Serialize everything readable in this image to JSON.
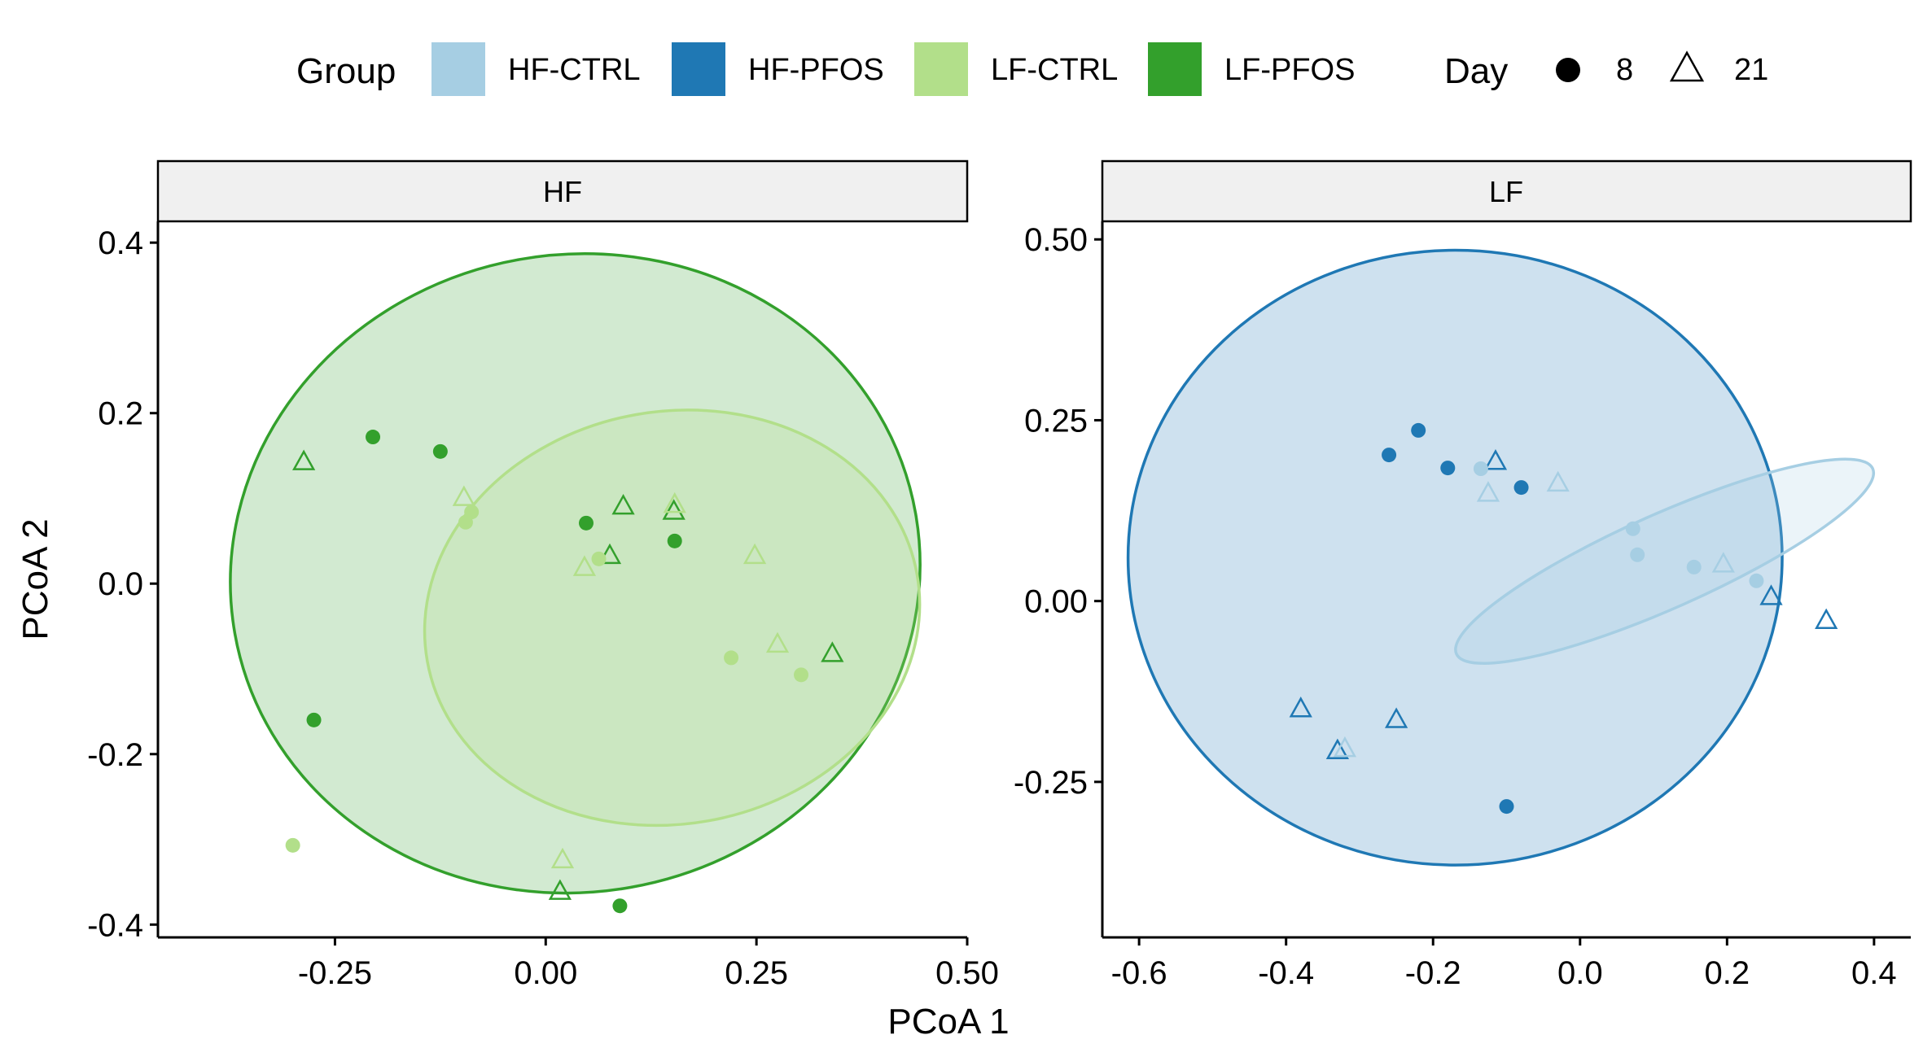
{
  "chart_data": {
    "type": "scatter",
    "xlabel": "PCoA 1",
    "ylabel": "PCoA 2",
    "legend": {
      "placement": "top",
      "group_title": "Group",
      "groups": [
        {
          "name": "HF-CTRL",
          "color": "#a6cee3"
        },
        {
          "name": "HF-PFOS",
          "color": "#1f78b4"
        },
        {
          "name": "LF-CTRL",
          "color": "#b2df8a"
        },
        {
          "name": "LF-PFOS",
          "color": "#33a02c"
        }
      ],
      "day_title": "Day",
      "days": [
        {
          "label": "8",
          "shape": "circle"
        },
        {
          "label": "21",
          "shape": "triangle"
        }
      ]
    },
    "panels": [
      {
        "strip": "HF",
        "xlim": [
          -0.46,
          0.5
        ],
        "ylim": [
          -0.415,
          0.425
        ],
        "xticks": [
          -0.25,
          0.0,
          0.25,
          0.5
        ],
        "xtick_labels": [
          "-0.25",
          "0.00",
          "0.25",
          "0.50"
        ],
        "yticks": [
          -0.4,
          -0.2,
          0.0,
          0.2,
          0.4
        ],
        "ytick_labels": [
          "-0.4",
          "-0.2",
          "0.0",
          "0.2",
          "0.4"
        ],
        "grid": false,
        "ellipses": [
          {
            "group": "LF-PFOS",
            "cx": 0.035,
            "cy": 0.012,
            "rx": 0.41,
            "ry": 0.374,
            "angle": -10
          },
          {
            "group": "LF-CTRL",
            "cx": 0.15,
            "cy": -0.04,
            "rx": 0.295,
            "ry": 0.242,
            "angle": -10
          }
        ],
        "points": [
          {
            "group": "LF-PFOS",
            "day": "8",
            "x": -0.205,
            "y": 0.172
          },
          {
            "group": "LF-PFOS",
            "day": "8",
            "x": -0.125,
            "y": 0.155
          },
          {
            "group": "LF-PFOS",
            "day": "8",
            "x": 0.048,
            "y": 0.071
          },
          {
            "group": "LF-PFOS",
            "day": "8",
            "x": 0.153,
            "y": 0.05
          },
          {
            "group": "LF-PFOS",
            "day": "8",
            "x": -0.275,
            "y": -0.16
          },
          {
            "group": "LF-PFOS",
            "day": "8",
            "x": 0.088,
            "y": -0.378
          },
          {
            "group": "LF-PFOS",
            "day": "21",
            "x": -0.287,
            "y": 0.142
          },
          {
            "group": "LF-PFOS",
            "day": "21",
            "x": 0.092,
            "y": 0.09
          },
          {
            "group": "LF-PFOS",
            "day": "21",
            "x": 0.152,
            "y": 0.084
          },
          {
            "group": "LF-PFOS",
            "day": "21",
            "x": 0.076,
            "y": 0.032
          },
          {
            "group": "LF-PFOS",
            "day": "21",
            "x": 0.34,
            "y": -0.083
          },
          {
            "group": "LF-PFOS",
            "day": "21",
            "x": 0.017,
            "y": -0.362
          },
          {
            "group": "LF-CTRL",
            "day": "8",
            "x": -0.095,
            "y": 0.072
          },
          {
            "group": "LF-CTRL",
            "day": "8",
            "x": -0.088,
            "y": 0.084
          },
          {
            "group": "LF-CTRL",
            "day": "8",
            "x": 0.063,
            "y": 0.029
          },
          {
            "group": "LF-CTRL",
            "day": "8",
            "x": 0.22,
            "y": -0.087
          },
          {
            "group": "LF-CTRL",
            "day": "8",
            "x": 0.303,
            "y": -0.107
          },
          {
            "group": "LF-CTRL",
            "day": "8",
            "x": -0.3,
            "y": -0.307
          },
          {
            "group": "LF-CTRL",
            "day": "21",
            "x": -0.097,
            "y": 0.1
          },
          {
            "group": "LF-CTRL",
            "day": "21",
            "x": 0.153,
            "y": 0.092
          },
          {
            "group": "LF-CTRL",
            "day": "21",
            "x": 0.046,
            "y": 0.018
          },
          {
            "group": "LF-CTRL",
            "day": "21",
            "x": 0.248,
            "y": 0.032
          },
          {
            "group": "LF-CTRL",
            "day": "21",
            "x": 0.275,
            "y": -0.072
          },
          {
            "group": "LF-CTRL",
            "day": "21",
            "x": 0.02,
            "y": -0.325
          }
        ]
      },
      {
        "strip": "LF",
        "xlim": [
          -0.65,
          0.45
        ],
        "ylim": [
          -0.465,
          0.525
        ],
        "xticks": [
          -0.6,
          -0.4,
          -0.2,
          0.0,
          0.2,
          0.4
        ],
        "xtick_labels": [
          "-0.6",
          "-0.4",
          "-0.2",
          "0.0",
          "0.2",
          "0.4"
        ],
        "yticks": [
          -0.25,
          0.0,
          0.25,
          0.5
        ],
        "ytick_labels": [
          "-0.25",
          "0.00",
          "0.25",
          "0.50"
        ],
        "grid": false,
        "ellipses": [
          {
            "group": "HF-PFOS",
            "cx": -0.17,
            "cy": 0.06,
            "rx": 0.445,
            "ry": 0.425,
            "angle": 0
          },
          {
            "group": "HF-CTRL",
            "cx": 0.115,
            "cy": 0.055,
            "rx": 0.31,
            "ry": 0.065,
            "angle": -24
          }
        ],
        "points": [
          {
            "group": "HF-PFOS",
            "day": "8",
            "x": -0.22,
            "y": 0.236
          },
          {
            "group": "HF-PFOS",
            "day": "8",
            "x": -0.26,
            "y": 0.202
          },
          {
            "group": "HF-PFOS",
            "day": "8",
            "x": -0.18,
            "y": 0.184
          },
          {
            "group": "HF-PFOS",
            "day": "8",
            "x": -0.08,
            "y": 0.157
          },
          {
            "group": "HF-PFOS",
            "day": "8",
            "x": -0.1,
            "y": -0.284
          },
          {
            "group": "HF-PFOS",
            "day": "21",
            "x": -0.115,
            "y": 0.192
          },
          {
            "group": "HF-PFOS",
            "day": "21",
            "x": 0.26,
            "y": 0.005
          },
          {
            "group": "HF-PFOS",
            "day": "21",
            "x": 0.335,
            "y": -0.028
          },
          {
            "group": "HF-PFOS",
            "day": "21",
            "x": -0.38,
            "y": -0.15
          },
          {
            "group": "HF-PFOS",
            "day": "21",
            "x": -0.25,
            "y": -0.165
          },
          {
            "group": "HF-PFOS",
            "day": "21",
            "x": -0.33,
            "y": -0.208
          },
          {
            "group": "HF-CTRL",
            "day": "8",
            "x": -0.135,
            "y": 0.183
          },
          {
            "group": "HF-CTRL",
            "day": "8",
            "x": 0.072,
            "y": 0.1
          },
          {
            "group": "HF-CTRL",
            "day": "8",
            "x": 0.078,
            "y": 0.064
          },
          {
            "group": "HF-CTRL",
            "day": "8",
            "x": 0.155,
            "y": 0.047
          },
          {
            "group": "HF-CTRL",
            "day": "8",
            "x": 0.24,
            "y": 0.028
          },
          {
            "group": "HF-CTRL",
            "day": "21",
            "x": -0.125,
            "y": 0.148
          },
          {
            "group": "HF-CTRL",
            "day": "21",
            "x": -0.03,
            "y": 0.162
          },
          {
            "group": "HF-CTRL",
            "day": "21",
            "x": 0.195,
            "y": 0.05
          },
          {
            "group": "HF-CTRL",
            "day": "21",
            "x": -0.32,
            "y": -0.205
          }
        ]
      }
    ]
  }
}
